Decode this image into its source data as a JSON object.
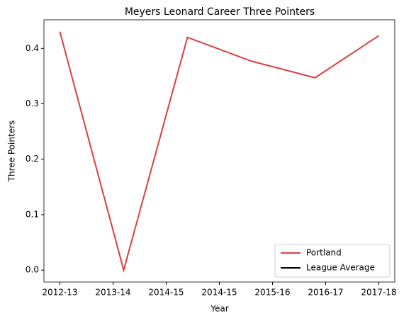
{
  "chart_data": {
    "type": "line",
    "title": "Meyers Leonard Career Three Pointers",
    "x_label": "Year",
    "y_label": "Three Pointers",
    "x": [
      0,
      1,
      2,
      3,
      4,
      5
    ],
    "series": [
      {
        "name": "Portland",
        "color": "#d94040",
        "values": [
          0.43,
          0.0,
          0.42,
          0.377,
          0.347,
          0.423
        ]
      },
      {
        "name": "League Average",
        "color": "#000000",
        "values": [
          null,
          null,
          null,
          null,
          null,
          null
        ]
      }
    ],
    "xlim": [
      -0.25,
      5.25
    ],
    "xticks": [
      {
        "value": 0,
        "label": "2012-13"
      },
      {
        "value": 0.8333,
        "label": "2013-14"
      },
      {
        "value": 1.6667,
        "label": "2014-15"
      },
      {
        "value": 2.5,
        "label": "2014-15"
      },
      {
        "value": 3.3333,
        "label": "2015-16"
      },
      {
        "value": 4.1667,
        "label": "2016-17"
      },
      {
        "value": 5,
        "label": "2017-18"
      }
    ],
    "ylim": [
      -0.0215,
      0.4515
    ],
    "yticks": [
      {
        "value": 0,
        "label": "0.0"
      },
      0.1,
      0.2,
      0.3,
      0.4
    ],
    "legend": "lower right"
  }
}
